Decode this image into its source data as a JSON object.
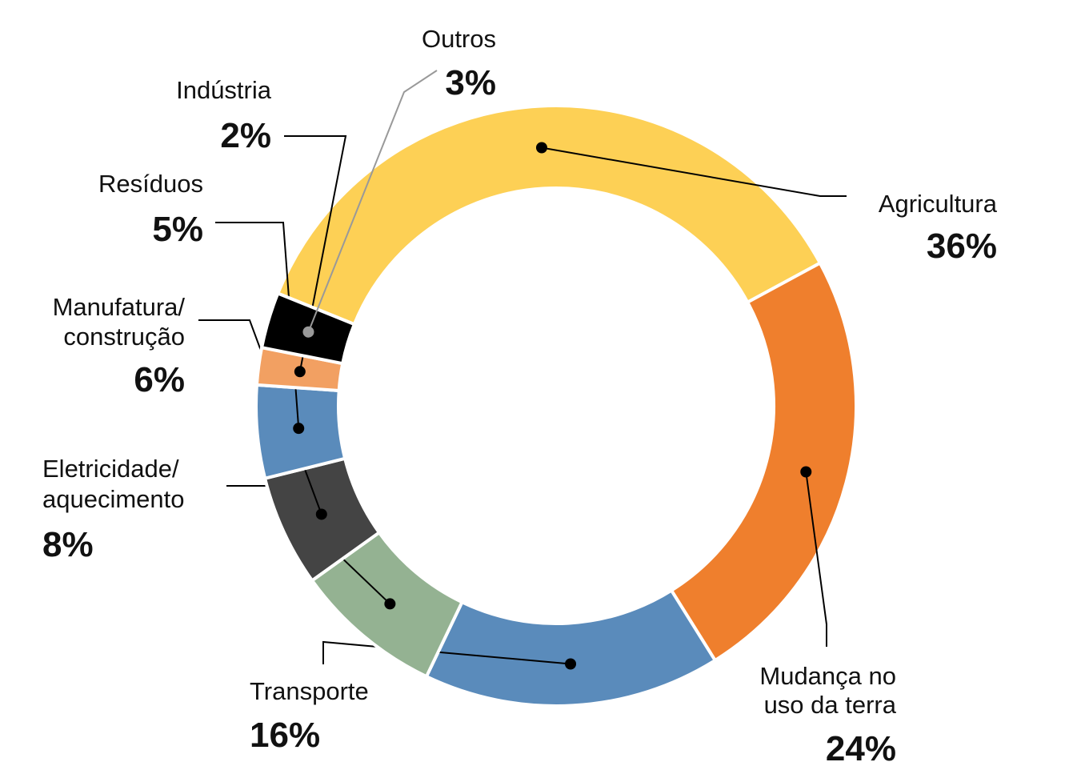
{
  "chart_data": {
    "type": "pie",
    "donut": true,
    "title": "",
    "slices": [
      {
        "name": "agricultura",
        "label_lines": [
          "Agricultura"
        ],
        "value": 36,
        "value_label": "36%",
        "color": "#FDD055",
        "leader_color": "#000000"
      },
      {
        "name": "mudanca-uso-terra",
        "label_lines": [
          "Mudança no",
          "uso da terra"
        ],
        "value": 24,
        "value_label": "24%",
        "color": "#EF7F2D",
        "leader_color": "#000000"
      },
      {
        "name": "transporte",
        "label_lines": [
          "Transporte"
        ],
        "value": 16,
        "value_label": "16%",
        "color": "#5A8BBB",
        "leader_color": "#000000"
      },
      {
        "name": "eletricidade-aquecimento",
        "label_lines": [
          "Eletricidade/",
          "aquecimento"
        ],
        "value": 8,
        "value_label": "8%",
        "color": "#94B292",
        "leader_color": "#000000"
      },
      {
        "name": "manufatura-construcao",
        "label_lines": [
          "Manufatura/",
          "construção"
        ],
        "value": 6,
        "value_label": "6%",
        "color": "#444444",
        "leader_color": "#000000"
      },
      {
        "name": "residuos",
        "label_lines": [
          "Resíduos"
        ],
        "value": 5,
        "value_label": "5%",
        "color": "#5A8BBB",
        "leader_color": "#000000"
      },
      {
        "name": "industria",
        "label_lines": [
          "Indústria"
        ],
        "value": 2,
        "value_label": "2%",
        "color": "#F2A062",
        "leader_color": "#000000"
      },
      {
        "name": "outros",
        "label_lines": [
          "Outros"
        ],
        "value": 3,
        "value_label": "3%",
        "color": "#000000",
        "leader_color": "#999999"
      }
    ]
  }
}
